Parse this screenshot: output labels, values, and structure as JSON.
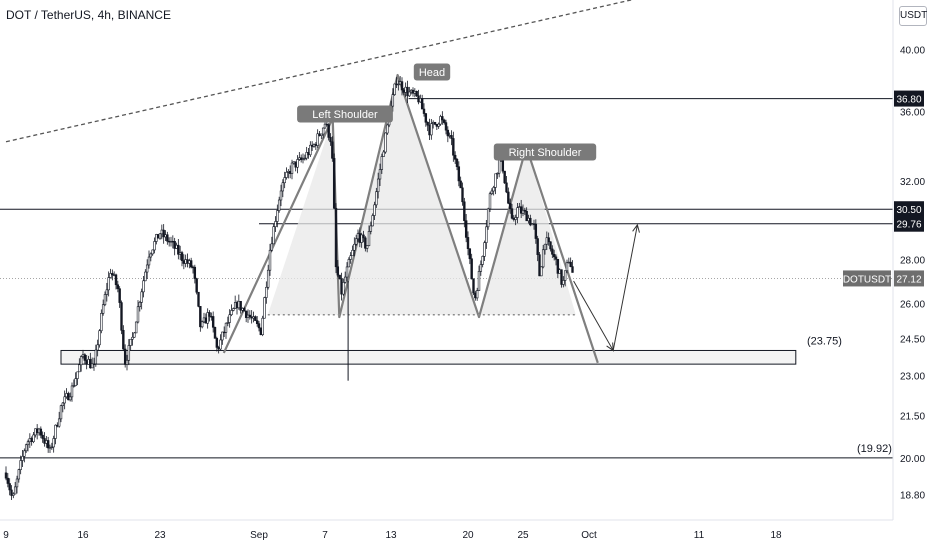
{
  "header": {
    "symbol_title": "DOT / TetherUS, 4h, BINANCE",
    "currency_button": "USDT"
  },
  "colors": {
    "bull": "#131722",
    "bear": "#131722",
    "pattern_line": "#7f7f7f",
    "pattern_fill": "#e8e8e8",
    "label_bg": "#7a7a7a",
    "axis_text": "#131722",
    "price_tag_bg": "#6e6e6e"
  },
  "chart_data": {
    "type": "candlestick",
    "title": "DOT / TetherUS, 4h, BINANCE",
    "x_axis": {
      "tick_labels": [
        "9",
        "16",
        "23",
        "Sep",
        "7",
        "13",
        "20",
        "25",
        "Oct",
        "11",
        "18"
      ],
      "ticks_day": [
        0,
        7,
        14,
        23,
        29,
        35,
        42,
        47,
        53,
        63,
        70
      ]
    },
    "y_axis": {
      "scale": "log",
      "range": [
        18.0,
        43.5
      ],
      "tick_labels": [
        "40.00",
        "36.00",
        "32.00",
        "28.00",
        "26.00",
        "24.50",
        "23.00",
        "21.50",
        "20.00",
        "18.80"
      ],
      "tick_values": [
        40.0,
        36.0,
        32.0,
        28.0,
        26.0,
        24.5,
        23.0,
        21.5,
        20.0,
        18.8
      ]
    },
    "price_path": [
      [
        0,
        19.5
      ],
      [
        0.6,
        18.6
      ],
      [
        1.8,
        20.5
      ],
      [
        3,
        21.0
      ],
      [
        4,
        20.2
      ],
      [
        5,
        21.8
      ],
      [
        6,
        22.5
      ],
      [
        7,
        23.8
      ],
      [
        8,
        23.3
      ],
      [
        8.8,
        25.8
      ],
      [
        9.5,
        27.5
      ],
      [
        10.2,
        26.6
      ],
      [
        10.8,
        23.5
      ],
      [
        11.5,
        24.5
      ],
      [
        12,
        25.8
      ],
      [
        13,
        28.3
      ],
      [
        14,
        29.3
      ],
      [
        15,
        28.8
      ],
      [
        16,
        28.1
      ],
      [
        17,
        27.6
      ],
      [
        17.7,
        24.9
      ],
      [
        18.5,
        25.6
      ],
      [
        19.2,
        24.0
      ],
      [
        20,
        25.0
      ],
      [
        21,
        26.0
      ],
      [
        22,
        25.5
      ],
      [
        23.2,
        24.8
      ],
      [
        24,
        28.5
      ],
      [
        25,
        31.6
      ],
      [
        26,
        32.8
      ],
      [
        27,
        33.2
      ],
      [
        28,
        34.0
      ],
      [
        29,
        35.3
      ],
      [
        29.6,
        34.2
      ],
      [
        30,
        27.6
      ],
      [
        30.5,
        26.5
      ],
      [
        31,
        27.5
      ],
      [
        32,
        29.2
      ],
      [
        32.8,
        28.6
      ],
      [
        33.5,
        30.8
      ],
      [
        34.5,
        34.5
      ],
      [
        35.5,
        38.0
      ],
      [
        36.5,
        37.2
      ],
      [
        37.5,
        36.8
      ],
      [
        38.5,
        34.9
      ],
      [
        39.5,
        35.6
      ],
      [
        40.5,
        34.1
      ],
      [
        41.5,
        31.0
      ],
      [
        42,
        28.5
      ],
      [
        42.6,
        26.1
      ],
      [
        43.3,
        28.2
      ],
      [
        44,
        31.2
      ],
      [
        45,
        33.4
      ],
      [
        45.6,
        31.0
      ],
      [
        46,
        29.8
      ],
      [
        46.5,
        30.5
      ],
      [
        47.3,
        30.2
      ],
      [
        48,
        29.6
      ],
      [
        48.5,
        27.3
      ],
      [
        49,
        29.0
      ],
      [
        50,
        27.9
      ],
      [
        50.6,
        26.8
      ],
      [
        51.2,
        28.1
      ],
      [
        51.6,
        27.12
      ]
    ],
    "horizontal_levels": [
      {
        "price": 36.8,
        "label": "36.80"
      },
      {
        "price": 30.5,
        "label": "30.50"
      },
      {
        "price": 29.76,
        "label": "29.76"
      },
      {
        "price": 20.0,
        "label": "(19.92)"
      }
    ],
    "support_zone": {
      "top": 24.0,
      "bottom": 23.45,
      "label": "(23.75)"
    },
    "current_price": {
      "symbol": "DOTUSDT",
      "value": 27.12
    },
    "annotations": {
      "left_shoulder": "Left Shoulder",
      "head": "Head",
      "right_shoulder": "Right Shoulder"
    },
    "pattern_points": [
      [
        19.8,
        23.9
      ],
      [
        29.7,
        35.6
      ],
      [
        30.3,
        25.4
      ],
      [
        35.6,
        38.3
      ],
      [
        43.0,
        25.4
      ],
      [
        47.3,
        33.9
      ],
      [
        53.8,
        23.5
      ]
    ],
    "neckline_price": 25.5,
    "neckline_start_day": 23.8,
    "projection_path": [
      [
        51.6,
        27.0
      ],
      [
        55.2,
        24.0
      ],
      [
        57.4,
        29.7
      ]
    ],
    "trendline": {
      "start": [
        0,
        34.2
      ],
      "end": [
        59.5,
        44.0
      ]
    }
  }
}
